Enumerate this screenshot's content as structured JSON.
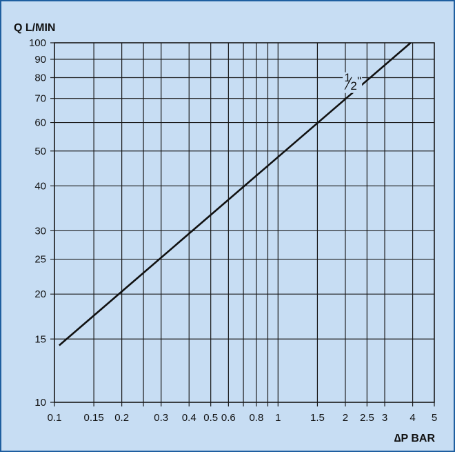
{
  "colors": {
    "background": "#c7ddf3",
    "border": "#1f5fa0",
    "grid": "#1a1a1a",
    "line": "#111111"
  },
  "chart_data": {
    "type": "line",
    "title": "",
    "ylabel": "Q L/MIN",
    "xlabel": "∆P BAR",
    "xscale": "log",
    "yscale": "log",
    "xlim": [
      0.1,
      5
    ],
    "ylim": [
      10,
      100
    ],
    "grid": true,
    "xticks": [
      0.1,
      0.15,
      0.2,
      0.3,
      0.4,
      0.5,
      0.6,
      0.8,
      1,
      1.5,
      2,
      2.5,
      3,
      4,
      5
    ],
    "xtick_labels": [
      "0.1",
      "0.15",
      "0.2",
      "0.3",
      "0.4",
      "0.5",
      "0.6",
      "0.8",
      "1",
      "1.5",
      "2",
      "2.5",
      "3",
      "4",
      "5"
    ],
    "x_extra_gridlines": [
      0.25,
      0.7,
      0.9
    ],
    "yticks": [
      10,
      15,
      20,
      25,
      30,
      40,
      50,
      60,
      70,
      80,
      90,
      100
    ],
    "ytick_labels": [
      "10",
      "15",
      "20",
      "25",
      "30",
      "40",
      "50",
      "60",
      "70",
      "80",
      "90",
      "100"
    ],
    "series": [
      {
        "name": "½\"",
        "label_num": "1",
        "label_den": "2",
        "label_unit": "\"",
        "x": [
          0.105,
          3.92
        ],
        "y": [
          14.4,
          100
        ],
        "label_x": 2.15
      }
    ]
  }
}
